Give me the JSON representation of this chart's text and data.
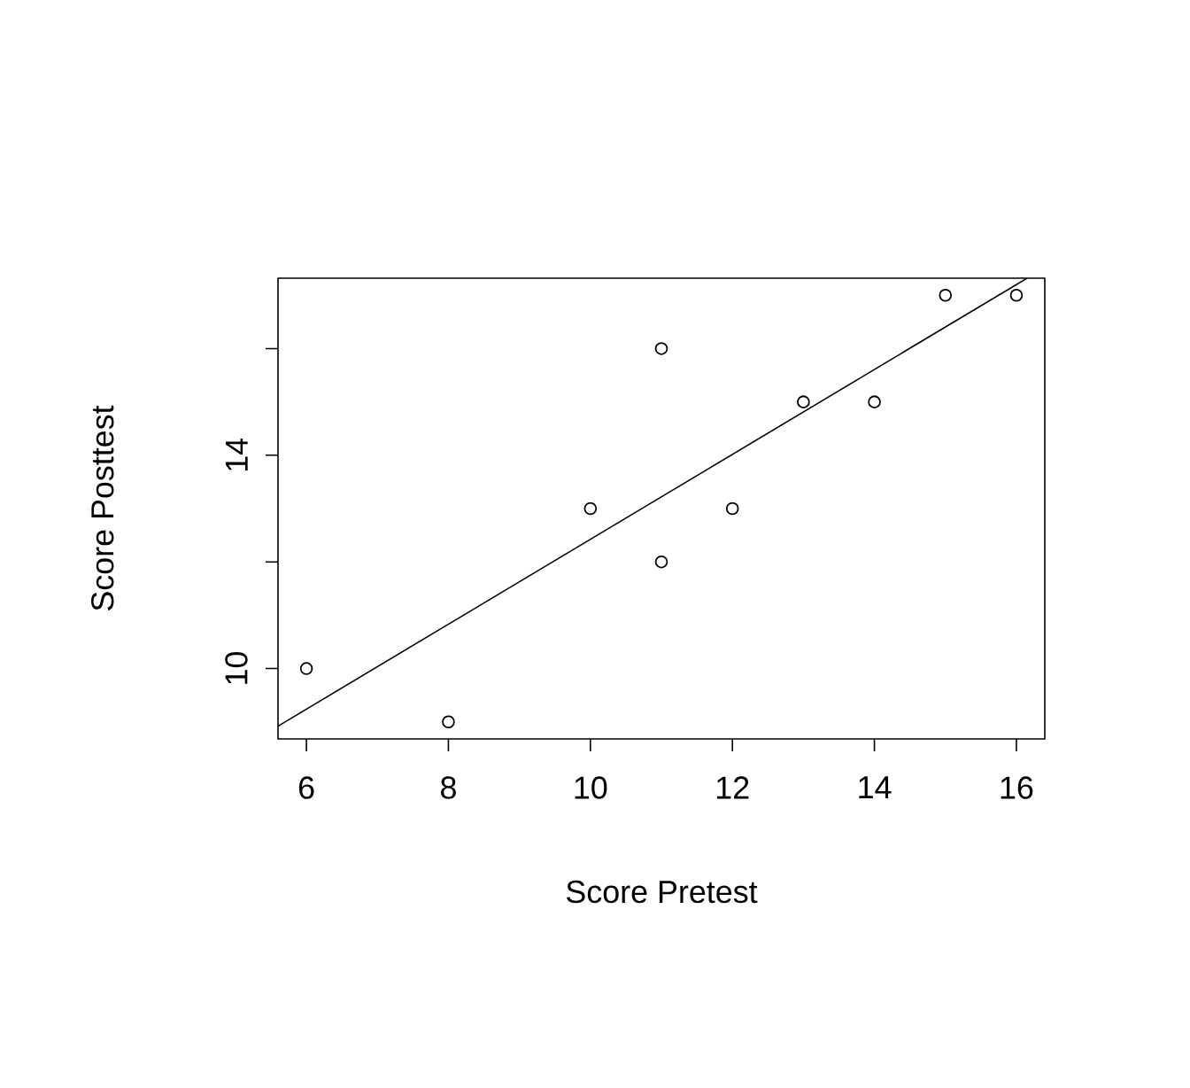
{
  "chart_data": {
    "type": "scatter",
    "xlabel": "Score Pretest",
    "ylabel": "Score Posttest",
    "xlim": [
      5.6,
      16.4
    ],
    "ylim": [
      8.68,
      17.32
    ],
    "xticks": [
      6,
      8,
      10,
      12,
      14,
      16
    ],
    "yticks": [
      10,
      {
        "value": 12,
        "label": null
      },
      14,
      {
        "value": 16,
        "label": null
      }
    ],
    "grid": false,
    "series": [
      {
        "color": "#000000",
        "marker": "circle",
        "x": [
          6,
          8,
          10,
          11,
          11,
          12,
          13,
          14,
          15,
          16
        ],
        "values": [
          10,
          9,
          13,
          12,
          16,
          13,
          15,
          15,
          17,
          17
        ]
      },
      {
        "type": "line",
        "color": "#000000",
        "marker": "none",
        "x": [
          5.6,
          16.15
        ],
        "values": [
          8.92,
          17.32
        ]
      }
    ]
  }
}
